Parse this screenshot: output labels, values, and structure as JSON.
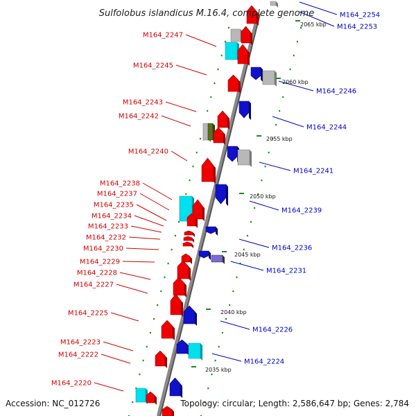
{
  "title": "Sulfolobus islandicus M.16.4, complete genome",
  "footer": {
    "accession": "Accession: NC_012726",
    "summary": "Topology: circular; Length: 2,586,647 bp; Genes: 2,784"
  },
  "colors": {
    "forward_strand": "#ee0000",
    "reverse_strand": "#1111cc",
    "rna_gene": "#00e0ee",
    "pseudo_gene": "#b8b8b8",
    "olive_gene": "#5a6e1e",
    "tick_marks": "#1a8a1a",
    "backbone": "#8a8a8a"
  },
  "scale": {
    "unit": "kbp",
    "major_ticks": [
      {
        "kbp": 2065,
        "label": "2065 kbp"
      },
      {
        "kbp": 2060,
        "label": "2060 kbp"
      },
      {
        "kbp": 2055,
        "label": "2055 kbp"
      },
      {
        "kbp": 2050,
        "label": "2050 kbp"
      },
      {
        "kbp": 2045,
        "label": "2045 kbp"
      },
      {
        "kbp": 2040,
        "label": "2040 kbp"
      },
      {
        "kbp": 2035,
        "label": "2035 kbp"
      }
    ]
  },
  "labels_left": [
    "M164_2247",
    "M164_2245",
    "M164_2243",
    "M164_2242",
    "M164_2240",
    "M164_2238",
    "M164_2237",
    "M164_2235",
    "M164_2234",
    "M164_2233",
    "M164_2232",
    "M164_2230",
    "M164_2229",
    "M164_2228",
    "M164_2227",
    "M164_2225",
    "M164_2223",
    "M164_2222",
    "M164_2220"
  ],
  "labels_right": [
    "M164_2254",
    "M164_2253",
    "M164_2246",
    "M164_2244",
    "M164_2241",
    "M164_2239",
    "M164_2236",
    "M164_2231",
    "M164_2226",
    "M164_2224"
  ]
}
